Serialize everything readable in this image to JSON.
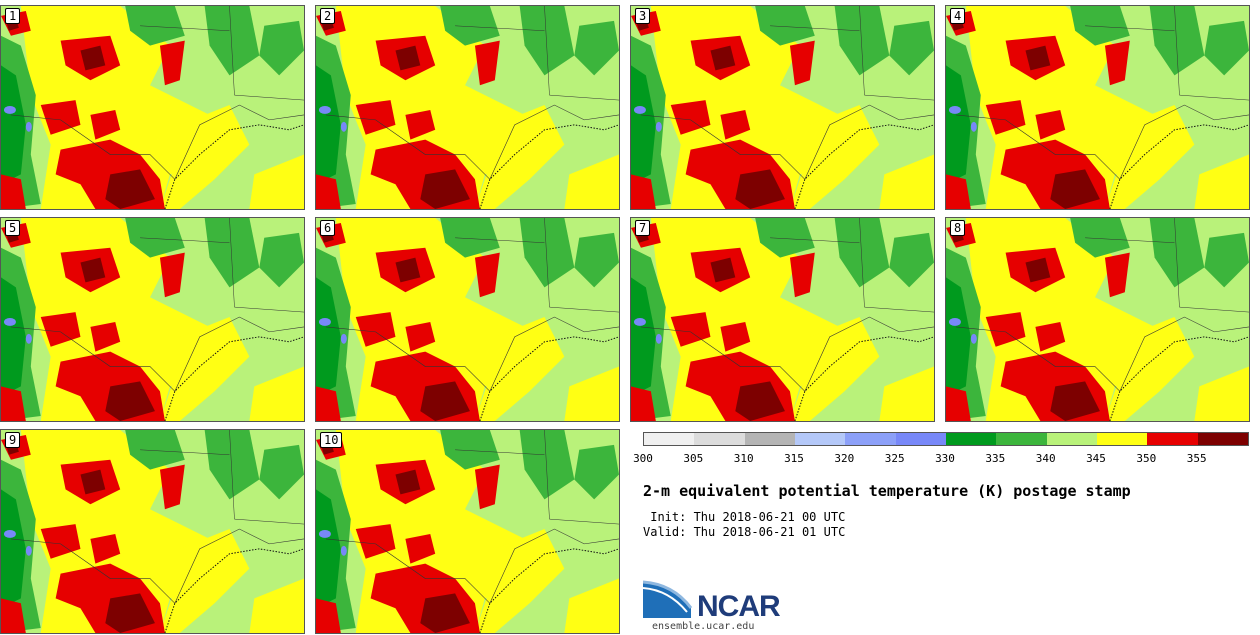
{
  "members": [
    {
      "label": "1"
    },
    {
      "label": "2"
    },
    {
      "label": "3"
    },
    {
      "label": "4"
    },
    {
      "label": "5"
    },
    {
      "label": "6"
    },
    {
      "label": "7"
    },
    {
      "label": "8"
    },
    {
      "label": "9"
    },
    {
      "label": "10"
    }
  ],
  "colorbar": {
    "colors": [
      "#f0f0f0",
      "#dcdcdc",
      "#b4b4b4",
      "#b4c8f8",
      "#8ca0f8",
      "#7888f8",
      "#009a1e",
      "#3cb53c",
      "#b9f27a",
      "#ffff14",
      "#e60000",
      "#7d0000"
    ],
    "ticks": [
      "300",
      "305",
      "310",
      "315",
      "320",
      "325",
      "330",
      "335",
      "340",
      "345",
      "350",
      "355"
    ]
  },
  "title": "2-m equivalent potential temperature (K) postage stamp",
  "init": " Init: Thu 2018-06-21 00 UTC",
  "valid": "Valid: Thu 2018-06-21 01 UTC",
  "logo": {
    "name": "NCAR",
    "url": "ensemble.ucar.edu"
  },
  "map_colors": {
    "green_dark": "#009a1e",
    "green": "#3cb53c",
    "light_green": "#b9f27a",
    "yellow": "#ffff14",
    "red": "#e60000",
    "dark_red": "#7d0000",
    "blue": "#7888f8"
  }
}
